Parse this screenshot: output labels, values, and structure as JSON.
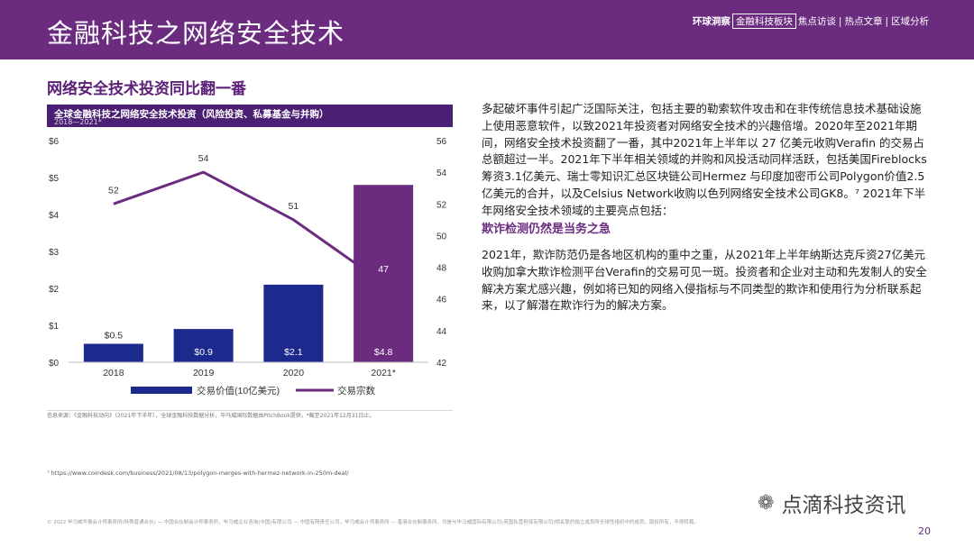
{
  "header": {
    "title": "金融科技之网络安全技术",
    "nav": [
      "环球洞察",
      "金融科技板块",
      "焦点访谈",
      "热点文章",
      "区域分析"
    ],
    "active_index": 1
  },
  "section_title": "网络安全技术投资同比翻一番",
  "chart_panel": {
    "title": "全球金融科技之网络安全技术投资（风险投资、私募基金与并购）",
    "subtitle": "2018—2021*"
  },
  "chart_data": {
    "type": "bar",
    "title": "全球金融科技之网络安全技术投资（风险投资、私募基金与并购）",
    "subtitle": "2018—2021*",
    "categories": [
      "2018",
      "2019",
      "2020",
      "2021*"
    ],
    "series": [
      {
        "name": "交易价值(10亿美元)",
        "type": "bar",
        "axis": "left",
        "values": [
          0.5,
          0.9,
          2.1,
          4.8
        ],
        "labels": [
          "$0.5",
          "$0.9",
          "$2.1",
          "$4.8"
        ],
        "colors": [
          "#1b2a8c",
          "#1b2a8c",
          "#1b2a8c",
          "#6b2c80"
        ]
      },
      {
        "name": "交易宗数",
        "type": "line",
        "axis": "right",
        "values": [
          52,
          54,
          51,
          47
        ],
        "color": "#6b2c80"
      }
    ],
    "left_axis": {
      "ylim": [
        0,
        6
      ],
      "ticks": [
        "$0",
        "$1",
        "$2",
        "$3",
        "$4",
        "$5",
        "$6"
      ]
    },
    "right_axis": {
      "ylim": [
        42,
        56
      ],
      "ticks": [
        "42",
        "44",
        "46",
        "48",
        "50",
        "52",
        "54",
        "56"
      ]
    },
    "legend_position": "bottom"
  },
  "source_note": "信息来源：《金融科技动向》（2021年下半年），全球金融科技数据分析，毕马威国际数据由PitchBook提供，*截至2021年12月31日止。",
  "body": {
    "paragraph1": "多起破坏事件引起广泛国际关注，包括主要的勒索软件攻击和在非传统信息技术基础设施上使用恶意软件，以致2021年投资者对网络安全技术的兴趣倍增。2020年至2021年期间，网络安全技术投资翻了一番，其中2021年上半年以 27 亿美元收购Verafin 的交易占总额超过一半。2021年下半年相关领域的并购和风投活动同样活跃，包括美国Fireblocks筹资3.1亿美元、瑞士零知识汇总区块链公司Hermez 与印度加密币公司Polygon价值2.5亿美元的合并，以及Celsius Network收购以色列网络安全技术公司GK8。⁷ 2021年下半年网络安全技术领域的主要亮点包括：",
    "subhead": "欺诈检测仍然是当务之急",
    "paragraph2": "2021年，欺诈防范仍是各地区机构的重中之重，从2021年上半年纳斯达克斥资27亿美元收购加拿大欺诈检测平台Verafin的交易可见一斑。投资者和企业对主动和先发制人的安全解决方案尤感兴趣，例如将已知的网络入侵指标与不同类型的欺诈和使用行为分析联系起来，以了解潜在欺诈行为的解决方案。"
  },
  "footnote": "⁷ https://www.coindesk.com/business/2021/08/13/polygon-merges-with-hermez-network-in-250m-deal/",
  "copyright": "© 2022 毕马威华振会计师事务所(特殊普通合伙) — 中国合伙制会计师事务所，毕马威企业咨询(中国)有限公司 — 中国有限责任公司，毕马威会计师事务所 — 香港合伙制事务所，均是与毕马威国际有限公司(英国私营担保有限公司)相关联的独立成员所全球性组织中的成员。版权所有，不得转载。",
  "watermark": {
    "icon": "wechat-icon",
    "text": "点滴科技资讯"
  },
  "page_number": "20"
}
